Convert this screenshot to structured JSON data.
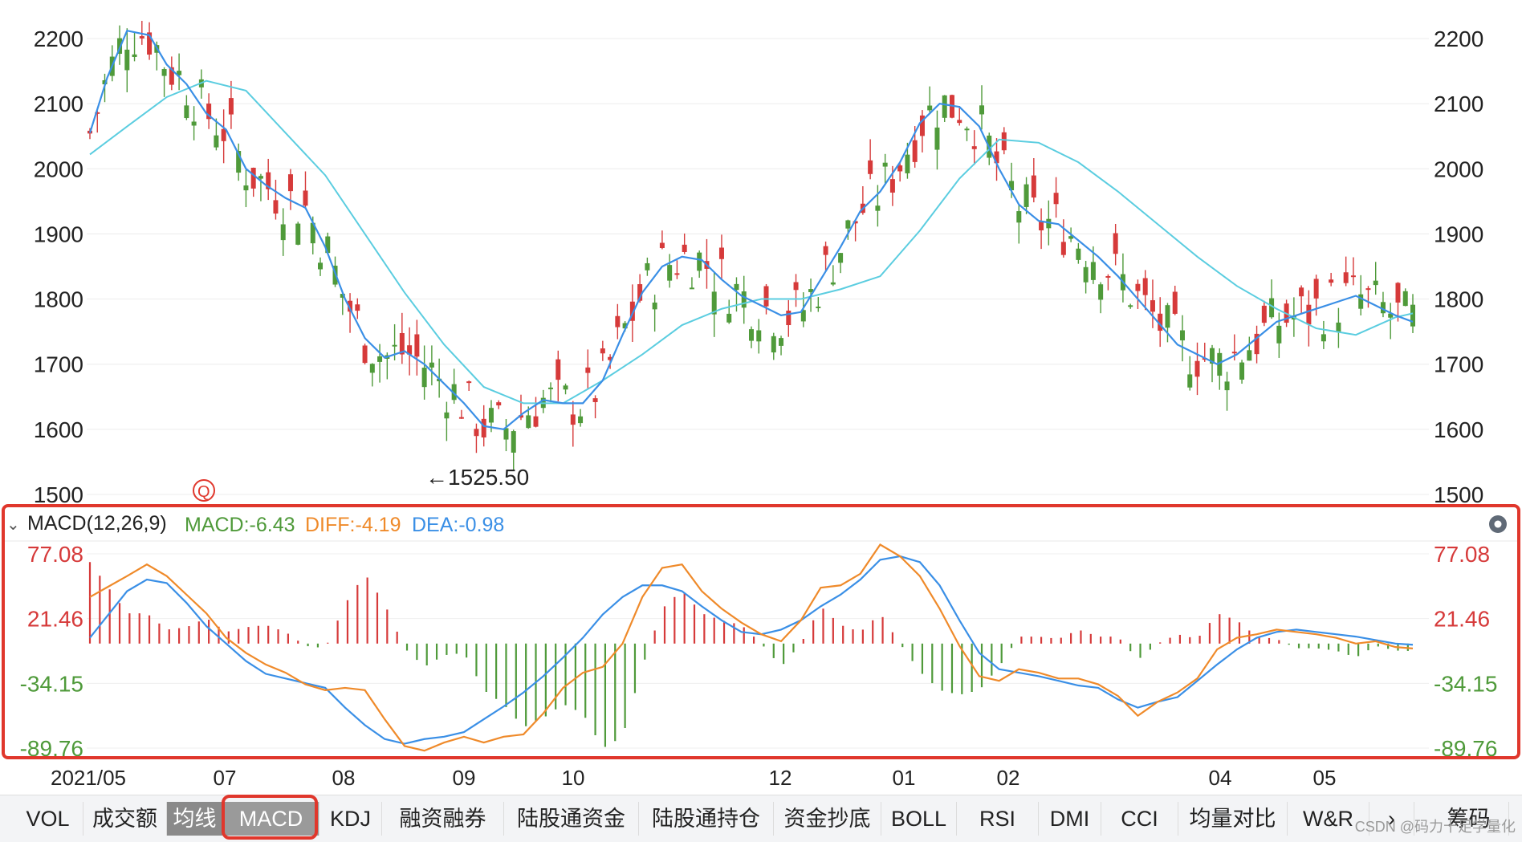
{
  "chart_data": [
    {
      "type": "candlestick",
      "y_ticks": [
        1500,
        1600,
        1700,
        1800,
        1900,
        2000,
        2100,
        2200
      ],
      "ylim": [
        1500,
        2250
      ],
      "x_labels": [
        "2021/05",
        "07",
        "08",
        "09",
        "10",
        "12",
        "01",
        "02",
        "04",
        "05"
      ],
      "annotations": {
        "low_label": "←1525.50",
        "marker": "Q"
      },
      "ma_fast": [
        [
          1,
          2055
        ],
        [
          8,
          2140
        ],
        [
          16,
          2212
        ],
        [
          25,
          2205
        ],
        [
          32,
          2160
        ],
        [
          40,
          2130
        ],
        [
          48,
          2085
        ],
        [
          56,
          2060
        ],
        [
          64,
          2000
        ],
        [
          72,
          1975
        ],
        [
          80,
          1955
        ],
        [
          88,
          1940
        ],
        [
          96,
          1880
        ],
        [
          104,
          1800
        ],
        [
          112,
          1740
        ],
        [
          120,
          1710
        ],
        [
          128,
          1720
        ],
        [
          136,
          1700
        ],
        [
          144,
          1670
        ],
        [
          152,
          1640
        ],
        [
          160,
          1605
        ],
        [
          168,
          1600
        ],
        [
          176,
          1625
        ],
        [
          184,
          1645
        ],
        [
          192,
          1640
        ],
        [
          200,
          1640
        ],
        [
          208,
          1675
        ],
        [
          216,
          1745
        ],
        [
          224,
          1810
        ],
        [
          232,
          1850
        ],
        [
          240,
          1865
        ],
        [
          248,
          1860
        ],
        [
          256,
          1830
        ],
        [
          264,
          1805
        ],
        [
          272,
          1790
        ],
        [
          280,
          1775
        ],
        [
          288,
          1780
        ],
        [
          296,
          1830
        ],
        [
          304,
          1880
        ],
        [
          312,
          1935
        ],
        [
          320,
          1965
        ],
        [
          328,
          2010
        ],
        [
          336,
          2070
        ],
        [
          344,
          2100
        ],
        [
          352,
          2095
        ],
        [
          360,
          2065
        ],
        [
          368,
          2000
        ],
        [
          376,
          1945
        ],
        [
          384,
          1920
        ],
        [
          392,
          1915
        ],
        [
          400,
          1890
        ],
        [
          408,
          1865
        ],
        [
          416,
          1835
        ],
        [
          424,
          1800
        ],
        [
          432,
          1765
        ],
        [
          440,
          1730
        ],
        [
          448,
          1715
        ],
        [
          456,
          1700
        ],
        [
          464,
          1715
        ],
        [
          472,
          1740
        ],
        [
          480,
          1765
        ],
        [
          488,
          1775
        ],
        [
          496,
          1785
        ],
        [
          504,
          1795
        ],
        [
          512,
          1805
        ],
        [
          520,
          1790
        ],
        [
          528,
          1775
        ],
        [
          535,
          1765
        ]
      ],
      "ma_slow": [
        [
          1,
          2022
        ],
        [
          16,
          2065
        ],
        [
          32,
          2110
        ],
        [
          48,
          2135
        ],
        [
          64,
          2120
        ],
        [
          80,
          2055
        ],
        [
          96,
          1990
        ],
        [
          112,
          1900
        ],
        [
          128,
          1810
        ],
        [
          144,
          1730
        ],
        [
          160,
          1665
        ],
        [
          176,
          1640
        ],
        [
          192,
          1640
        ],
        [
          208,
          1675
        ],
        [
          224,
          1715
        ],
        [
          240,
          1760
        ],
        [
          256,
          1785
        ],
        [
          272,
          1800
        ],
        [
          288,
          1800
        ],
        [
          304,
          1815
        ],
        [
          320,
          1835
        ],
        [
          336,
          1905
        ],
        [
          352,
          1985
        ],
        [
          368,
          2045
        ],
        [
          384,
          2040
        ],
        [
          400,
          2010
        ],
        [
          416,
          1965
        ],
        [
          432,
          1915
        ],
        [
          448,
          1865
        ],
        [
          464,
          1820
        ],
        [
          480,
          1785
        ],
        [
          496,
          1755
        ],
        [
          512,
          1745
        ],
        [
          528,
          1772
        ],
        [
          535,
          1778
        ]
      ],
      "candle_count": 535
    },
    {
      "type": "macd",
      "title": "MACD(12,26,9)",
      "readout": {
        "macd": "MACD:-6.43",
        "diff": "DIFF:-4.19",
        "dea": "DEA:-0.98"
      },
      "y_ticks": [
        "77.08",
        "21.46",
        "-34.15",
        "-89.76"
      ],
      "ylim": [
        -89.76,
        77.08
      ],
      "diff": [
        [
          1,
          40
        ],
        [
          16,
          58
        ],
        [
          24,
          68
        ],
        [
          32,
          58
        ],
        [
          40,
          42
        ],
        [
          48,
          26
        ],
        [
          56,
          5
        ],
        [
          64,
          -8
        ],
        [
          72,
          -18
        ],
        [
          80,
          -25
        ],
        [
          88,
          -35
        ],
        [
          96,
          -40
        ],
        [
          104,
          -38
        ],
        [
          112,
          -40
        ],
        [
          120,
          -65
        ],
        [
          128,
          -88
        ],
        [
          136,
          -92
        ],
        [
          144,
          -85
        ],
        [
          152,
          -80
        ],
        [
          160,
          -85
        ],
        [
          168,
          -80
        ],
        [
          176,
          -78
        ],
        [
          184,
          -60
        ],
        [
          192,
          -38
        ],
        [
          200,
          -25
        ],
        [
          208,
          -20
        ],
        [
          216,
          0
        ],
        [
          224,
          40
        ],
        [
          232,
          65
        ],
        [
          240,
          68
        ],
        [
          248,
          45
        ],
        [
          256,
          30
        ],
        [
          264,
          18
        ],
        [
          272,
          8
        ],
        [
          280,
          2
        ],
        [
          288,
          20
        ],
        [
          296,
          48
        ],
        [
          304,
          50
        ],
        [
          312,
          60
        ],
        [
          320,
          85
        ],
        [
          328,
          75
        ],
        [
          336,
          58
        ],
        [
          344,
          30
        ],
        [
          352,
          -2
        ],
        [
          360,
          -28
        ],
        [
          368,
          -32
        ],
        [
          376,
          -22
        ],
        [
          384,
          -25
        ],
        [
          392,
          -30
        ],
        [
          400,
          -30
        ],
        [
          408,
          -35
        ],
        [
          416,
          -45
        ],
        [
          424,
          -62
        ],
        [
          432,
          -50
        ],
        [
          440,
          -42
        ],
        [
          448,
          -30
        ],
        [
          456,
          -5
        ],
        [
          464,
          5
        ],
        [
          472,
          8
        ],
        [
          480,
          12
        ],
        [
          488,
          10
        ],
        [
          496,
          8
        ],
        [
          504,
          5
        ],
        [
          512,
          0
        ],
        [
          520,
          2
        ],
        [
          528,
          -3
        ],
        [
          535,
          -4.19
        ]
      ],
      "dea": [
        [
          1,
          5
        ],
        [
          16,
          45
        ],
        [
          24,
          55
        ],
        [
          32,
          52
        ],
        [
          40,
          35
        ],
        [
          48,
          15
        ],
        [
          56,
          0
        ],
        [
          64,
          -15
        ],
        [
          72,
          -26
        ],
        [
          80,
          -30
        ],
        [
          88,
          -34
        ],
        [
          96,
          -38
        ],
        [
          104,
          -55
        ],
        [
          112,
          -70
        ],
        [
          120,
          -82
        ],
        [
          128,
          -86
        ],
        [
          136,
          -82
        ],
        [
          144,
          -80
        ],
        [
          152,
          -76
        ],
        [
          160,
          -65
        ],
        [
          168,
          -54
        ],
        [
          176,
          -42
        ],
        [
          184,
          -28
        ],
        [
          192,
          -12
        ],
        [
          200,
          5
        ],
        [
          208,
          25
        ],
        [
          216,
          40
        ],
        [
          224,
          50
        ],
        [
          232,
          50
        ],
        [
          240,
          45
        ],
        [
          248,
          32
        ],
        [
          256,
          20
        ],
        [
          264,
          10
        ],
        [
          272,
          8
        ],
        [
          280,
          12
        ],
        [
          288,
          20
        ],
        [
          296,
          32
        ],
        [
          304,
          42
        ],
        [
          312,
          55
        ],
        [
          320,
          72
        ],
        [
          328,
          75
        ],
        [
          336,
          70
        ],
        [
          344,
          50
        ],
        [
          352,
          20
        ],
        [
          360,
          -8
        ],
        [
          368,
          -22
        ],
        [
          376,
          -25
        ],
        [
          384,
          -28
        ],
        [
          392,
          -32
        ],
        [
          400,
          -36
        ],
        [
          408,
          -38
        ],
        [
          416,
          -48
        ],
        [
          424,
          -55
        ],
        [
          432,
          -50
        ],
        [
          440,
          -46
        ],
        [
          448,
          -32
        ],
        [
          456,
          -18
        ],
        [
          464,
          -5
        ],
        [
          472,
          5
        ],
        [
          480,
          10
        ],
        [
          488,
          12
        ],
        [
          496,
          10
        ],
        [
          504,
          8
        ],
        [
          512,
          6
        ],
        [
          520,
          3
        ],
        [
          528,
          0
        ],
        [
          535,
          -0.98
        ]
      ],
      "colors": {
        "macd_label": "#4f9a3a",
        "diff": "#ef8a2a",
        "dea": "#3a8fe6",
        "up": "#d63a3a",
        "down": "#4f9a3a"
      }
    }
  ],
  "tabs": [
    {
      "label": "VOL"
    },
    {
      "label": "成交额"
    },
    {
      "label": "均线"
    },
    {
      "label": "MACD"
    },
    {
      "label": "KDJ"
    },
    {
      "label": "融资融券"
    },
    {
      "label": "陆股通资金"
    },
    {
      "label": "陆股通持仓"
    },
    {
      "label": "资金抄底"
    },
    {
      "label": "BOLL"
    },
    {
      "label": "RSI"
    },
    {
      "label": "DMI"
    },
    {
      "label": "CCI"
    },
    {
      "label": "均量对比"
    },
    {
      "label": "W&R"
    },
    {
      "label": "›"
    },
    {
      "label": "筹码"
    }
  ],
  "watermark": "CSDN @码力十足学量化",
  "gear_icon": "gear-icon",
  "collapse_icon": "chevron-down-icon"
}
